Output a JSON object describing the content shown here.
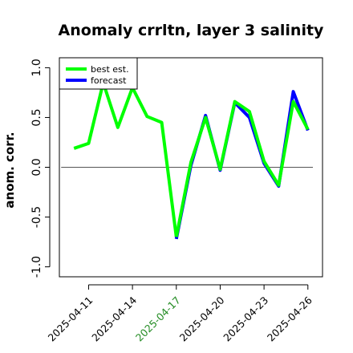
{
  "chart_data": {
    "type": "line",
    "title": "Anomaly crrltn, layer 3 salinity",
    "ylabel": "anom. corr.",
    "xlabel": "",
    "ylim": [
      -1.0,
      1.0
    ],
    "x_range": [
      "2025-04-09",
      "2025-04-27"
    ],
    "yticks": [
      "-1.0",
      "-0.5",
      "0.0",
      "0.5",
      "1.0"
    ],
    "xticks": [
      {
        "label": "2025-04-11",
        "date": "2025-04-11",
        "color": "#000000"
      },
      {
        "label": "2025-04-14",
        "date": "2025-04-14",
        "color": "#000000"
      },
      {
        "label": "2025-04-17",
        "date": "2025-04-17",
        "color": "#228B22"
      },
      {
        "label": "2025-04-20",
        "date": "2025-04-20",
        "color": "#000000"
      },
      {
        "label": "2025-04-23",
        "date": "2025-04-23",
        "color": "#000000"
      },
      {
        "label": "2025-04-26",
        "date": "2025-04-26",
        "color": "#000000"
      }
    ],
    "reference_line": 0.0,
    "legend_position": "top-left",
    "series": [
      {
        "name": "best est.",
        "color": "#00ff00",
        "points": [
          {
            "x": "2025-04-10",
            "y": 0.19
          },
          {
            "x": "2025-04-11",
            "y": 0.24
          },
          {
            "x": "2025-04-12",
            "y": 0.85
          },
          {
            "x": "2025-04-13",
            "y": 0.4
          },
          {
            "x": "2025-04-14",
            "y": 0.8
          },
          {
            "x": "2025-04-15",
            "y": 0.51
          },
          {
            "x": "2025-04-16",
            "y": 0.45
          },
          {
            "x": "2025-04-17",
            "y": -0.7
          }
        ]
      },
      {
        "name": "forecast",
        "color": "#0000ff",
        "points": [
          {
            "x": "2025-04-17",
            "y": -0.72
          },
          {
            "x": "2025-04-18",
            "y": 0.02
          },
          {
            "x": "2025-04-19",
            "y": 0.52
          },
          {
            "x": "2025-04-20",
            "y": -0.03
          },
          {
            "x": "2025-04-21",
            "y": 0.65
          },
          {
            "x": "2025-04-22",
            "y": 0.5
          },
          {
            "x": "2025-04-23",
            "y": 0.04
          },
          {
            "x": "2025-04-24",
            "y": -0.19
          },
          {
            "x": "2025-04-25",
            "y": 0.76
          },
          {
            "x": "2025-04-26",
            "y": 0.37
          }
        ]
      },
      {
        "name": "best est. (overlap)",
        "color": "#00ff00",
        "in_legend": false,
        "points": [
          {
            "x": "2025-04-17",
            "y": -0.7
          },
          {
            "x": "2025-04-18",
            "y": 0.05
          },
          {
            "x": "2025-04-19",
            "y": 0.5
          },
          {
            "x": "2025-04-20",
            "y": -0.02
          },
          {
            "x": "2025-04-21",
            "y": 0.66
          },
          {
            "x": "2025-04-22",
            "y": 0.56
          },
          {
            "x": "2025-04-23",
            "y": 0.06
          },
          {
            "x": "2025-04-24",
            "y": -0.18
          },
          {
            "x": "2025-04-25",
            "y": 0.66
          },
          {
            "x": "2025-04-26",
            "y": 0.38
          }
        ]
      }
    ]
  }
}
